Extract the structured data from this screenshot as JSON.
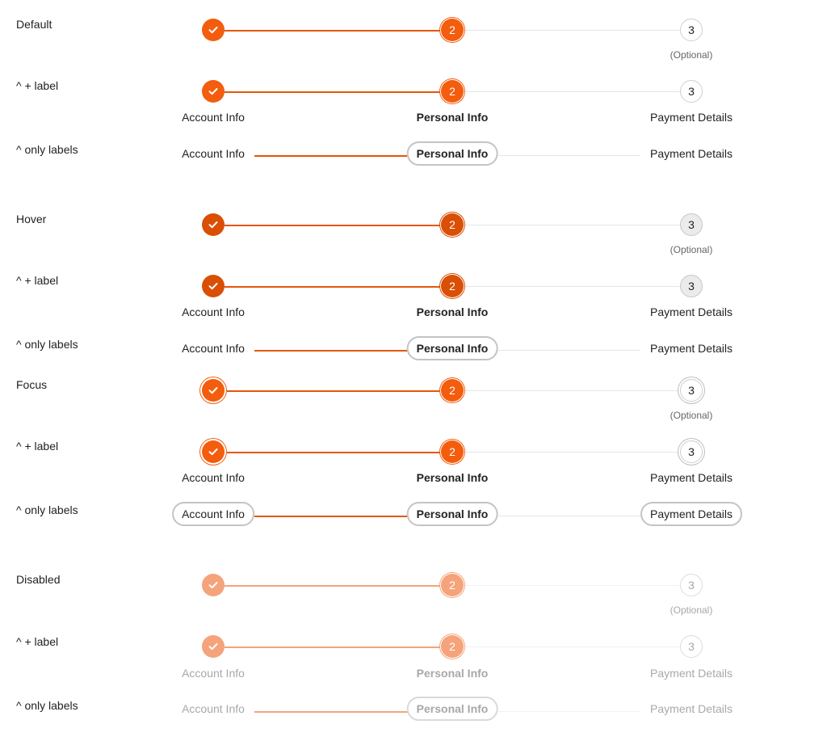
{
  "sections": {
    "default": "Default",
    "hover": "Hover",
    "focus": "Focus",
    "disabled": "Disabled"
  },
  "variants": {
    "with_label": "^ + label",
    "only_labels": "^ only labels"
  },
  "steps": {
    "step1_label": "Account Info",
    "step2_label": "Personal Info",
    "step2_number": "2",
    "step3_label": "Payment Details",
    "step3_number": "3",
    "optional": "(Optional)"
  },
  "colors": {
    "accent": "#f35d0d",
    "accent_hover": "#d94f05",
    "accent_disabled": "#f5a37a",
    "track": "#e6e6e6"
  },
  "icons": {
    "completed": "check-icon"
  }
}
